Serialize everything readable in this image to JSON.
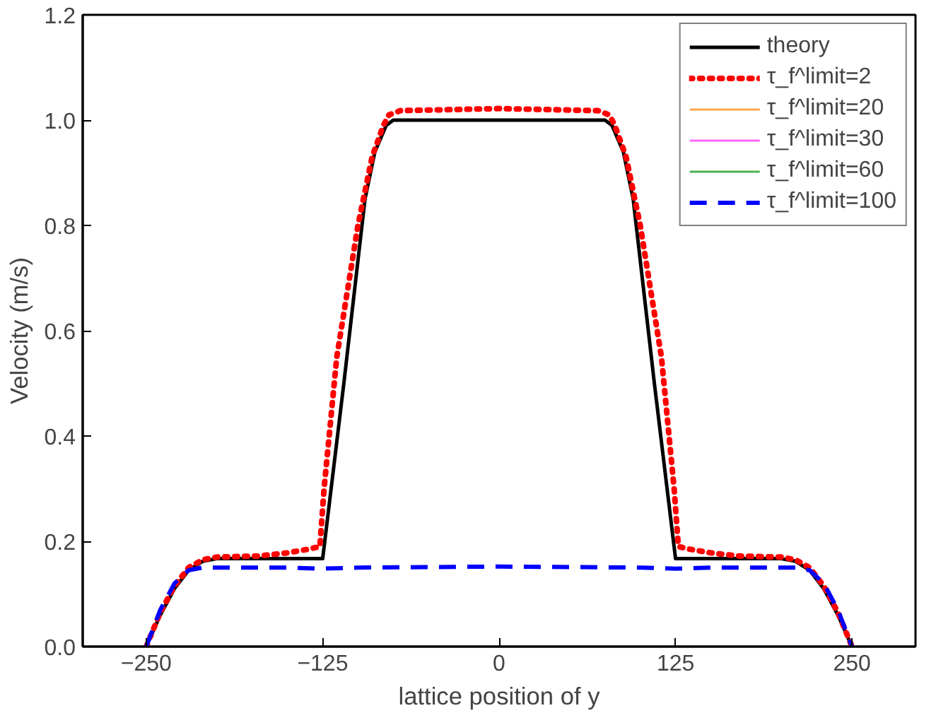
{
  "chart_data": {
    "type": "line",
    "xlabel": "lattice position of y",
    "ylabel": "Velocity (m/s)",
    "xlim": [
      -295,
      295
    ],
    "ylim": [
      0,
      1.2
    ],
    "xticks": [
      -250,
      -125,
      0,
      125,
      250
    ],
    "yticks": [
      {
        "value": 0,
        "label": "0.0"
      },
      {
        "value": 0.2,
        "label": "0.2"
      },
      {
        "value": 0.4,
        "label": "0.4"
      },
      {
        "value": 0.6,
        "label": "0.6"
      },
      {
        "value": 0.8,
        "label": "0.8"
      },
      {
        "value": 1,
        "label": "1.0"
      },
      {
        "value": 1.2,
        "label": "1.2"
      }
    ],
    "grid": false,
    "legend": "top right",
    "marker": "none",
    "series": [
      {
        "name": "theory",
        "color": "#000000",
        "line_style": "solid",
        "x": [
          -250,
          -240,
          -230,
          -220,
          -210,
          -200,
          -125,
          -110,
          -95,
          -88,
          -80,
          -75,
          75,
          80,
          88,
          95,
          110,
          125,
          200,
          210,
          220,
          230,
          240,
          250
        ],
        "values": [
          0,
          0.06,
          0.11,
          0.145,
          0.162,
          0.167,
          0.167,
          0.5,
          0.85,
          0.94,
          0.99,
          1.0,
          1.0,
          0.99,
          0.94,
          0.85,
          0.5,
          0.167,
          0.167,
          0.162,
          0.145,
          0.11,
          0.06,
          0
        ]
      },
      {
        "name": "τ_f^limit=2",
        "color": "#ff0000",
        "line_style": "dotted",
        "x": [
          -250,
          -240,
          -230,
          -220,
          -210,
          -200,
          -170,
          -150,
          -135,
          -127,
          -124,
          -115,
          -100,
          -90,
          -82,
          -78,
          -70,
          0,
          70,
          78,
          82,
          90,
          100,
          115,
          124,
          127,
          135,
          150,
          170,
          200,
          210,
          220,
          230,
          240,
          250
        ],
        "values": [
          0,
          0.065,
          0.115,
          0.15,
          0.165,
          0.17,
          0.172,
          0.178,
          0.185,
          0.19,
          0.3,
          0.55,
          0.8,
          0.93,
          0.99,
          1.01,
          1.018,
          1.022,
          1.018,
          1.01,
          0.99,
          0.93,
          0.8,
          0.55,
          0.3,
          0.19,
          0.185,
          0.178,
          0.172,
          0.17,
          0.165,
          0.15,
          0.115,
          0.065,
          0
        ]
      },
      {
        "name": "τ_f^limit=20",
        "color": "#ffa64d",
        "line_style": "solid"
      },
      {
        "name": "τ_f^limit=30",
        "color": "#ff66ff",
        "line_style": "solid"
      },
      {
        "name": "τ_f^limit=60",
        "color": "#4caf50",
        "line_style": "solid"
      },
      {
        "name": "τ_f^limit=100",
        "color": "#0000ff",
        "line_style": "dashed",
        "x": [
          -250,
          -240,
          -230,
          -220,
          -210,
          -150,
          -125,
          -100,
          0,
          100,
          125,
          150,
          210,
          220,
          230,
          240,
          250
        ],
        "values": [
          0,
          0.07,
          0.12,
          0.145,
          0.15,
          0.15,
          0.148,
          0.15,
          0.152,
          0.15,
          0.148,
          0.15,
          0.15,
          0.145,
          0.12,
          0.07,
          0
        ]
      }
    ]
  }
}
